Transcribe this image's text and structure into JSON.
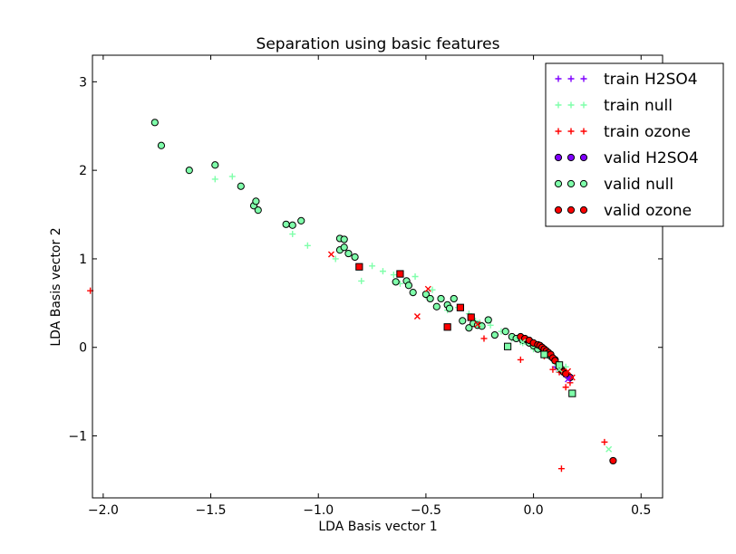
{
  "chart_data": {
    "type": "scatter",
    "title": "Separation using basic features",
    "xlabel": "LDA Basis vector 1",
    "ylabel": "LDA Basis vector 2",
    "xlim": [
      -2.05,
      0.6
    ],
    "ylim": [
      -1.7,
      3.3
    ],
    "xticks": [
      -2.0,
      -1.5,
      -1.0,
      -0.5,
      0.0,
      0.5
    ],
    "xtick_labels": [
      "−2.0",
      "−1.5",
      "−1.0",
      "−0.5",
      "0.0",
      "0.5"
    ],
    "yticks": [
      -1,
      0,
      1,
      2,
      3
    ],
    "ytick_labels": [
      "−1",
      "0",
      "1",
      "2",
      "3"
    ],
    "grid": false,
    "legend_position": "top-right",
    "series": [
      {
        "name": "train H2SO4",
        "marker": "plus",
        "color": "#7f00ff",
        "x": [
          0.12,
          0.14,
          0.16,
          0.17,
          0.1
        ],
        "y": [
          -0.27,
          -0.3,
          -0.32,
          -0.35,
          -0.22
        ]
      },
      {
        "name": "train null",
        "marker": "plus",
        "color": "#7fffaa",
        "x": [
          -1.48,
          -1.4,
          -1.12,
          -1.05,
          -0.92,
          -0.8,
          -0.75,
          -0.7,
          -0.65,
          -0.62,
          -0.55,
          -0.5,
          -0.47,
          -0.43,
          -0.4,
          -0.35,
          -0.3,
          -0.27,
          -0.25,
          -0.2,
          -0.15,
          -0.1,
          -0.05,
          0.0,
          0.05,
          0.1,
          0.15
        ],
        "y": [
          1.9,
          1.93,
          1.28,
          1.15,
          1.0,
          0.75,
          0.92,
          0.86,
          0.82,
          0.72,
          0.8,
          0.58,
          0.65,
          0.55,
          0.42,
          0.45,
          0.38,
          0.3,
          0.28,
          0.25,
          0.18,
          0.1,
          0.05,
          -0.02,
          -0.1,
          -0.18,
          -0.22
        ]
      },
      {
        "name": "train ozone",
        "marker": "plus",
        "color": "#ff0000",
        "x": [
          -2.06,
          -0.23,
          -0.06,
          0.05,
          0.09,
          0.12,
          0.15,
          0.17,
          0.13,
          0.33
        ],
        "y": [
          0.64,
          0.1,
          -0.14,
          -0.1,
          -0.25,
          -0.28,
          -0.45,
          -0.4,
          -1.37,
          -1.07
        ]
      },
      {
        "name": "valid H2SO4",
        "marker": "circle",
        "color": "#7f00ff",
        "x": [
          0.16,
          0.17
        ],
        "y": [
          -0.32,
          -0.34
        ]
      },
      {
        "name": "valid null",
        "marker": "circle",
        "color": "#7fffaa",
        "x": [
          -1.76,
          -1.73,
          -1.6,
          -1.48,
          -1.36,
          -1.3,
          -1.29,
          -1.28,
          -1.15,
          -1.12,
          -1.08,
          -0.9,
          -0.88,
          -0.9,
          -0.88,
          -0.86,
          -0.83,
          -0.64,
          -0.59,
          -0.58,
          -0.56,
          -0.5,
          -0.48,
          -0.45,
          -0.43,
          -0.4,
          -0.39,
          -0.37,
          -0.33,
          -0.3,
          -0.28,
          -0.26,
          -0.24,
          -0.21,
          -0.18,
          -0.13,
          -0.1,
          -0.08,
          -0.05,
          -0.02,
          0.0,
          0.02,
          0.05,
          0.08,
          0.1,
          0.12
        ],
        "y": [
          2.54,
          2.28,
          2.0,
          2.06,
          1.82,
          1.6,
          1.65,
          1.55,
          1.39,
          1.38,
          1.43,
          1.23,
          1.22,
          1.1,
          1.13,
          1.06,
          1.02,
          0.74,
          0.75,
          0.7,
          0.62,
          0.6,
          0.55,
          0.46,
          0.55,
          0.48,
          0.44,
          0.55,
          0.3,
          0.22,
          0.27,
          0.25,
          0.24,
          0.31,
          0.14,
          0.18,
          0.12,
          0.1,
          0.08,
          0.05,
          0.02,
          -0.02,
          -0.05,
          -0.1,
          -0.14,
          -0.2
        ]
      },
      {
        "name": "valid ozone",
        "marker": "circle",
        "color": "#ff0000",
        "x": [
          -0.06,
          -0.04,
          -0.02,
          0.0,
          0.02,
          0.03,
          0.04,
          0.05,
          0.06,
          0.07,
          0.08,
          0.09,
          0.1,
          0.12,
          0.13,
          0.14,
          0.15,
          0.37
        ],
        "y": [
          0.12,
          0.1,
          0.08,
          0.05,
          0.03,
          0.02,
          0.0,
          -0.02,
          -0.04,
          -0.06,
          -0.08,
          -0.12,
          -0.15,
          -0.22,
          -0.25,
          -0.28,
          -0.3,
          -1.28
        ]
      }
    ],
    "extra_points": {
      "null_squares": {
        "color": "#7fffaa",
        "x": [
          -0.12,
          0.12,
          0.18,
          0.05
        ],
        "y": [
          0.01,
          -0.2,
          -0.52,
          -0.08
        ]
      },
      "ozone_squares": {
        "color": "#ff0000",
        "x": [
          -0.81,
          -0.62,
          -0.4,
          -0.34,
          -0.29
        ],
        "y": [
          0.91,
          0.83,
          0.23,
          0.45,
          0.34
        ]
      },
      "null_x": {
        "color": "#7fffaa",
        "x": [
          0.35,
          0.12,
          -0.05
        ],
        "y": [
          -1.15,
          -0.25,
          0.06
        ]
      },
      "ozone_x": {
        "color": "#ff0000",
        "x": [
          -0.94,
          -0.54,
          -0.49,
          -0.26,
          0.18,
          0.16
        ],
        "y": [
          1.05,
          0.35,
          0.66,
          0.26,
          -0.34,
          -0.27
        ]
      },
      "h2so4_x": {
        "color": "#7f00ff",
        "x": [
          0.16
        ],
        "y": [
          -0.36
        ]
      }
    }
  }
}
